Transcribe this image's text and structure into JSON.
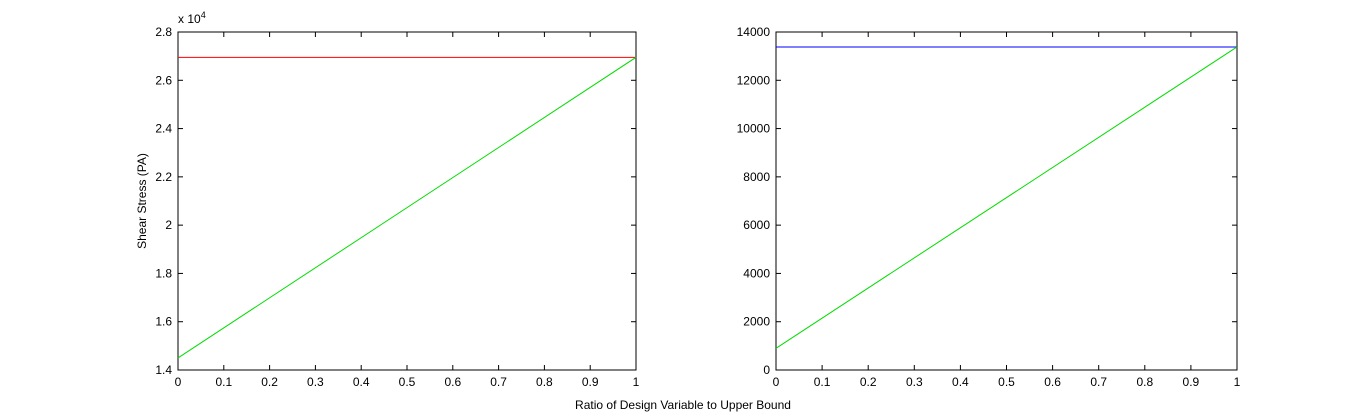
{
  "figure": {
    "xlabel": "Ratio of Design Variable to Upper Bound"
  },
  "chart_data": [
    {
      "type": "line",
      "title": "",
      "xlabel": "",
      "ylabel": "Shear Stress (PA)",
      "exponent_label": {
        "base": "x 10",
        "power": "4"
      },
      "xlim": [
        0,
        1
      ],
      "ylim": [
        1.4,
        2.8
      ],
      "xticks": [
        0,
        0.1,
        0.2,
        0.3,
        0.4,
        0.5,
        0.6,
        0.7,
        0.8,
        0.9,
        1
      ],
      "xtick_labels": [
        "0",
        "0.1",
        "0.2",
        "0.3",
        "0.4",
        "0.5",
        "0.6",
        "0.7",
        "0.8",
        "0.9",
        "1"
      ],
      "yticks": [
        1.4,
        1.6,
        1.8,
        2,
        2.2,
        2.4,
        2.6,
        2.8
      ],
      "ytick_labels": [
        "1.4",
        "1.6",
        "1.8",
        "2",
        "2.2",
        "2.4",
        "2.6",
        "2.8"
      ],
      "grid": false,
      "series": [
        {
          "color": "#ff0000",
          "x": [
            0,
            1
          ],
          "y": [
            2.695,
            2.695
          ]
        },
        {
          "color": "#00dd00",
          "x": [
            0,
            1
          ],
          "y": [
            1.45,
            2.695
          ]
        }
      ]
    },
    {
      "type": "line",
      "title": "",
      "xlabel": "",
      "ylabel": "",
      "xlim": [
        0,
        1
      ],
      "ylim": [
        0,
        14000
      ],
      "xticks": [
        0,
        0.1,
        0.2,
        0.3,
        0.4,
        0.5,
        0.6,
        0.7,
        0.8,
        0.9,
        1
      ],
      "xtick_labels": [
        "0",
        "0.1",
        "0.2",
        "0.3",
        "0.4",
        "0.5",
        "0.6",
        "0.7",
        "0.8",
        "0.9",
        "1"
      ],
      "yticks": [
        0,
        2000,
        4000,
        6000,
        8000,
        10000,
        12000,
        14000
      ],
      "ytick_labels": [
        "0",
        "2000",
        "4000",
        "6000",
        "8000",
        "10000",
        "12000",
        "14000"
      ],
      "grid": false,
      "series": [
        {
          "color": "#0000ff",
          "x": [
            0,
            1
          ],
          "y": [
            13380,
            13380
          ]
        },
        {
          "color": "#00dd00",
          "x": [
            0,
            1
          ],
          "y": [
            900,
            13380
          ]
        }
      ]
    }
  ]
}
